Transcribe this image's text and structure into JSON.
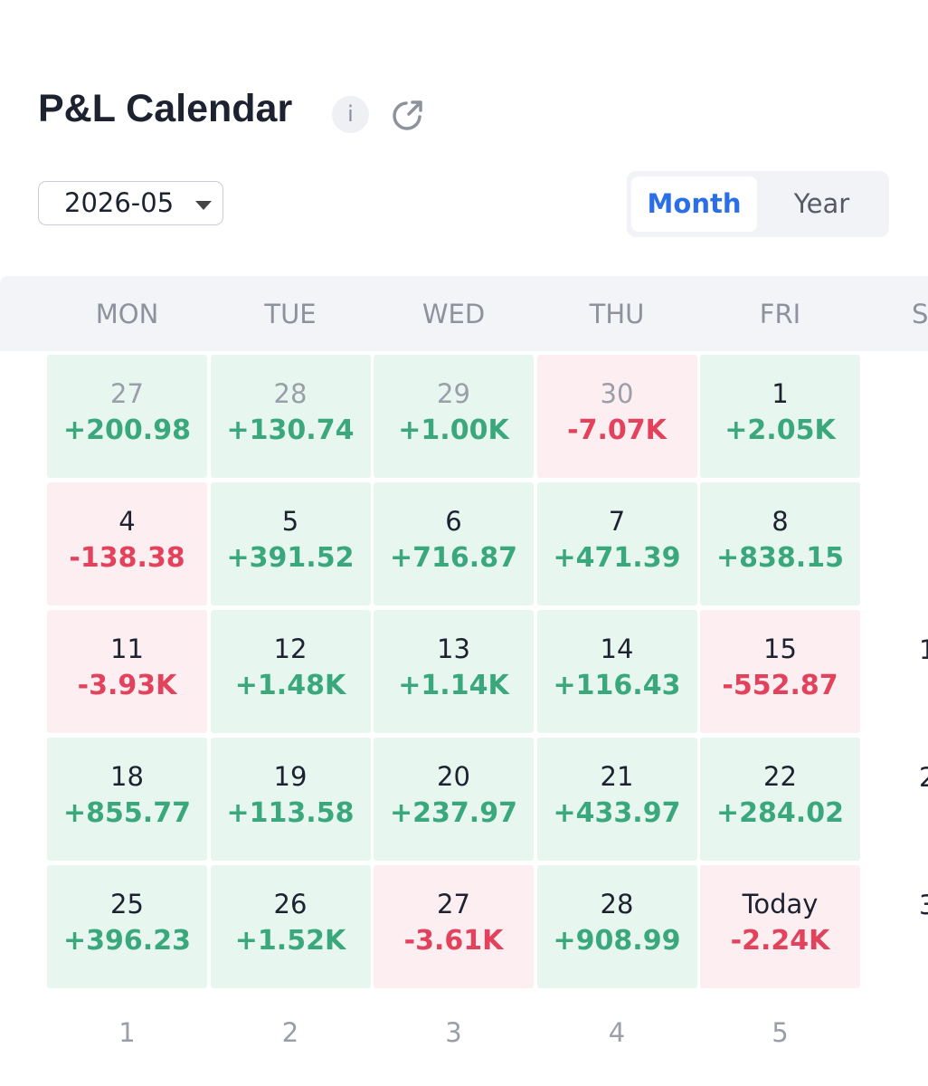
{
  "header": {
    "title": "P&L Calendar",
    "info": "i"
  },
  "controls": {
    "date": "2026-05",
    "tabs": [
      "Month",
      "Year"
    ],
    "active_tab": 0
  },
  "calendar": {
    "weekdays": [
      "MON",
      "TUE",
      "WED",
      "THU",
      "FRI",
      "S"
    ],
    "rows": [
      [
        {
          "day": "27",
          "pnl": "+200.98",
          "muted": true
        },
        {
          "day": "28",
          "pnl": "+130.74",
          "muted": true
        },
        {
          "day": "29",
          "pnl": "+1.00K",
          "muted": true
        },
        {
          "day": "30",
          "pnl": "-7.07K",
          "muted": true
        },
        {
          "day": "1",
          "pnl": "+2.05K"
        }
      ],
      [
        {
          "day": "4",
          "pnl": "-138.38"
        },
        {
          "day": "5",
          "pnl": "+391.52"
        },
        {
          "day": "6",
          "pnl": "+716.87"
        },
        {
          "day": "7",
          "pnl": "+471.39"
        },
        {
          "day": "8",
          "pnl": "+838.15"
        }
      ],
      [
        {
          "day": "11",
          "pnl": "-3.93K"
        },
        {
          "day": "12",
          "pnl": "+1.48K"
        },
        {
          "day": "13",
          "pnl": "+1.14K"
        },
        {
          "day": "14",
          "pnl": "+116.43"
        },
        {
          "day": "15",
          "pnl": "-552.87"
        }
      ],
      [
        {
          "day": "18",
          "pnl": "+855.77"
        },
        {
          "day": "19",
          "pnl": "+113.58"
        },
        {
          "day": "20",
          "pnl": "+237.97"
        },
        {
          "day": "21",
          "pnl": "+433.97"
        },
        {
          "day": "22",
          "pnl": "+284.02"
        }
      ],
      [
        {
          "day": "25",
          "pnl": "+396.23"
        },
        {
          "day": "26",
          "pnl": "+1.52K"
        },
        {
          "day": "27",
          "pnl": "-3.61K"
        },
        {
          "day": "28",
          "pnl": "+908.99"
        },
        {
          "day": "Today",
          "pnl": "-2.24K"
        }
      ]
    ],
    "partial_column": [
      "1",
      "2",
      "3"
    ],
    "footer": [
      "1",
      "2",
      "3",
      "4",
      "5"
    ]
  }
}
